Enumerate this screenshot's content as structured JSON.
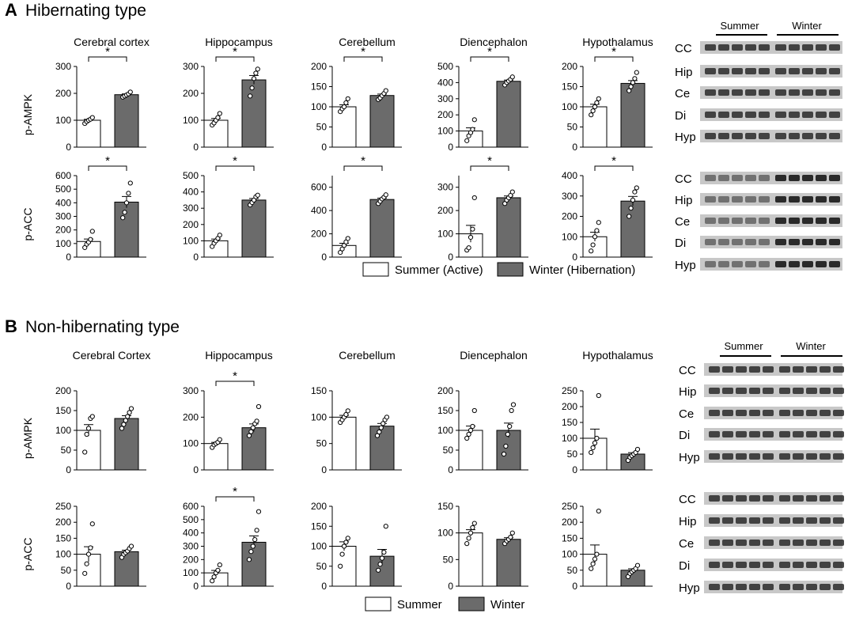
{
  "colors": {
    "summer_fill": "#ffffff",
    "winter_fill": "#6b6b6b",
    "blot_dark": "#2a2a2a",
    "blot_bg": "#c8c8c8"
  },
  "panels": [
    {
      "letter": "A",
      "title": "Hibernating type",
      "legend": [
        "Summer (Active)",
        "Winter (Hibernation)"
      ],
      "blot_group_labels": [
        "Summer",
        "Winter"
      ],
      "blot_ampk_lanes": [
        "CC",
        "Hip",
        "Ce",
        "Di",
        "Hyp"
      ],
      "blot_acc_lanes": [
        "CC",
        "Hip",
        "Ce",
        "Di",
        "Hyp"
      ],
      "regions": [
        "Cerebral cortex",
        "Hippocampus",
        "Cerebellum",
        "Diencephalon",
        "Hypothalamus"
      ],
      "row_labels": [
        "p-AMPK",
        "p-ACC"
      ]
    },
    {
      "letter": "B",
      "title": "Non-hibernating type",
      "legend": [
        "Summer",
        "Winter"
      ],
      "blot_group_labels": [
        "Summer",
        "Winter"
      ],
      "blot_ampk_lanes": [
        "CC",
        "Hip",
        "Ce",
        "Di",
        "Hyp"
      ],
      "blot_acc_lanes": [
        "CC",
        "Hip",
        "Ce",
        "Di",
        "Hyp"
      ],
      "regions": [
        "Cerebral Cortex",
        "Hippocampus",
        "Cerebellum",
        "Diencephalon",
        "Hypothalamus"
      ],
      "row_labels": [
        "p-AMPK",
        "p-ACC"
      ]
    }
  ],
  "chart_data": [
    {
      "panel": "A",
      "row": "p-AMPK",
      "region": "Cerebral cortex",
      "type": "bar",
      "categories": [
        "Summer",
        "Winter"
      ],
      "values": [
        100,
        195
      ],
      "ylim": [
        0,
        300
      ],
      "yticks": [
        0,
        100,
        200,
        300
      ],
      "sig": "*",
      "points": [
        [
          88,
          95,
          100,
          104,
          110
        ],
        [
          186,
          190,
          194,
          198,
          205
        ]
      ]
    },
    {
      "panel": "A",
      "row": "p-AMPK",
      "region": "Hippocampus",
      "type": "bar",
      "categories": [
        "Summer",
        "Winter"
      ],
      "values": [
        100,
        250
      ],
      "ylim": [
        0,
        300
      ],
      "yticks": [
        0,
        100,
        200,
        300
      ],
      "sig": "*",
      "points": [
        [
          82,
          90,
          100,
          110,
          125
        ],
        [
          190,
          220,
          255,
          275,
          290
        ]
      ]
    },
    {
      "panel": "A",
      "row": "p-AMPK",
      "region": "Cerebellum",
      "type": "bar",
      "categories": [
        "Summer",
        "Winter"
      ],
      "values": [
        100,
        128
      ],
      "ylim": [
        0,
        200
      ],
      "yticks": [
        0,
        50,
        100,
        150,
        200
      ],
      "sig": "*",
      "points": [
        [
          88,
          95,
          100,
          110,
          120
        ],
        [
          118,
          122,
          128,
          133,
          140
        ]
      ]
    },
    {
      "panel": "A",
      "row": "p-AMPK",
      "region": "Diencephalon",
      "type": "bar",
      "categories": [
        "Summer",
        "Winter"
      ],
      "values": [
        100,
        408
      ],
      "ylim": [
        0,
        500
      ],
      "yticks": [
        0,
        100,
        200,
        300,
        400,
        500
      ],
      "sig": "*",
      "points": [
        [
          40,
          70,
          90,
          110,
          170
        ],
        [
          385,
          400,
          410,
          420,
          435
        ]
      ]
    },
    {
      "panel": "A",
      "row": "p-AMPK",
      "region": "Hypothalamus",
      "type": "bar",
      "categories": [
        "Summer",
        "Winter"
      ],
      "values": [
        100,
        158
      ],
      "ylim": [
        0,
        200
      ],
      "yticks": [
        0,
        50,
        100,
        150,
        200
      ],
      "sig": "*",
      "points": [
        [
          80,
          90,
          100,
          110,
          120
        ],
        [
          140,
          150,
          160,
          170,
          185
        ]
      ]
    },
    {
      "panel": "A",
      "row": "p-ACC",
      "region": "Cerebral cortex",
      "type": "bar",
      "categories": [
        "Summer",
        "Winter"
      ],
      "values": [
        115,
        405
      ],
      "ylim": [
        0,
        600
      ],
      "yticks": [
        0,
        100,
        200,
        300,
        400,
        500,
        600
      ],
      "sig": "*",
      "points": [
        [
          70,
          95,
          110,
          130,
          190
        ],
        [
          290,
          330,
          400,
          470,
          545
        ]
      ]
    },
    {
      "panel": "A",
      "row": "p-ACC",
      "region": "Hippocampus",
      "type": "bar",
      "categories": [
        "Summer",
        "Winter"
      ],
      "values": [
        100,
        350
      ],
      "ylim": [
        0,
        500
      ],
      "yticks": [
        0,
        100,
        200,
        300,
        400,
        500
      ],
      "sig": "*",
      "points": [
        [
          65,
          85,
          100,
          115,
          135
        ],
        [
          320,
          335,
          350,
          370,
          380
        ]
      ]
    },
    {
      "panel": "A",
      "row": "p-ACC",
      "region": "Cerebellum",
      "type": "bar",
      "categories": [
        "Summer",
        "Winter"
      ],
      "values": [
        100,
        495
      ],
      "ylim": [
        0,
        700
      ],
      "yticks": [
        0,
        200,
        400,
        600
      ],
      "sig": "*",
      "points": [
        [
          40,
          70,
          100,
          130,
          160
        ],
        [
          460,
          480,
          500,
          515,
          535
        ]
      ]
    },
    {
      "panel": "A",
      "row": "p-ACC",
      "region": "Diencephalon",
      "type": "bar",
      "categories": [
        "Summer",
        "Winter"
      ],
      "values": [
        100,
        255
      ],
      "ylim": [
        0,
        350
      ],
      "yticks": [
        0,
        100,
        200,
        300
      ],
      "sig": "*",
      "points": [
        [
          30,
          40,
          85,
          120,
          255
        ],
        [
          230,
          245,
          255,
          265,
          280
        ]
      ]
    },
    {
      "panel": "A",
      "row": "p-ACC",
      "region": "Hypothalamus",
      "type": "bar",
      "categories": [
        "Summer",
        "Winter"
      ],
      "values": [
        100,
        275
      ],
      "ylim": [
        0,
        400
      ],
      "yticks": [
        0,
        100,
        200,
        300,
        400
      ],
      "sig": "*",
      "points": [
        [
          30,
          60,
          100,
          130,
          170
        ],
        [
          200,
          240,
          280,
          320,
          340
        ]
      ]
    },
    {
      "panel": "B",
      "row": "p-AMPK",
      "region": "Cerebral Cortex",
      "type": "bar",
      "categories": [
        "Summer",
        "Winter"
      ],
      "values": [
        100,
        130
      ],
      "ylim": [
        0,
        200
      ],
      "yticks": [
        0,
        50,
        100,
        150,
        200
      ],
      "sig": "",
      "points": [
        [
          45,
          90,
          105,
          130,
          135
        ],
        [
          105,
          115,
          125,
          135,
          145,
          155
        ]
      ]
    },
    {
      "panel": "B",
      "row": "p-AMPK",
      "region": "Hippocampus",
      "type": "bar",
      "categories": [
        "Summer",
        "Winter"
      ],
      "values": [
        100,
        160
      ],
      "ylim": [
        0,
        300
      ],
      "yticks": [
        0,
        100,
        200,
        300
      ],
      "sig": "*",
      "points": [
        [
          85,
          95,
          100,
          105,
          115
        ],
        [
          130,
          145,
          160,
          175,
          185,
          240
        ]
      ]
    },
    {
      "panel": "B",
      "row": "p-AMPK",
      "region": "Cerebellum",
      "type": "bar",
      "categories": [
        "Summer",
        "Winter"
      ],
      "values": [
        100,
        83
      ],
      "ylim": [
        0,
        150
      ],
      "yticks": [
        0,
        50,
        100,
        150
      ],
      "sig": "",
      "points": [
        [
          90,
          95,
          100,
          105,
          112
        ],
        [
          65,
          72,
          80,
          88,
          95,
          100
        ]
      ]
    },
    {
      "panel": "B",
      "row": "p-AMPK",
      "region": "Diencephalon",
      "type": "bar",
      "categories": [
        "Summer",
        "Winter"
      ],
      "values": [
        100,
        100
      ],
      "ylim": [
        0,
        200
      ],
      "yticks": [
        0,
        50,
        100,
        150,
        200
      ],
      "sig": "",
      "points": [
        [
          80,
          90,
          100,
          110,
          150
        ],
        [
          40,
          60,
          90,
          110,
          150,
          165
        ]
      ]
    },
    {
      "panel": "B",
      "row": "p-AMPK",
      "region": "Hypothalamus",
      "type": "bar",
      "categories": [
        "Summer",
        "Winter"
      ],
      "values": [
        100,
        50
      ],
      "ylim": [
        0,
        250
      ],
      "yticks": [
        0,
        50,
        100,
        150,
        200,
        250
      ],
      "sig": "",
      "points": [
        [
          55,
          70,
          85,
          100,
          235
        ],
        [
          30,
          40,
          45,
          50,
          55,
          65
        ]
      ]
    },
    {
      "panel": "B",
      "row": "p-ACC",
      "region": "Cerebral Cortex",
      "type": "bar",
      "categories": [
        "Summer",
        "Winter"
      ],
      "values": [
        100,
        108
      ],
      "ylim": [
        0,
        250
      ],
      "yticks": [
        0,
        50,
        100,
        150,
        200,
        250
      ],
      "sig": "",
      "points": [
        [
          40,
          70,
          100,
          120,
          195
        ],
        [
          90,
          100,
          105,
          110,
          118,
          125
        ]
      ]
    },
    {
      "panel": "B",
      "row": "p-ACC",
      "region": "Hippocampus",
      "type": "bar",
      "categories": [
        "Summer",
        "Winter"
      ],
      "values": [
        100,
        330
      ],
      "ylim": [
        0,
        600
      ],
      "yticks": [
        0,
        100,
        200,
        300,
        400,
        500,
        600
      ],
      "sig": "*",
      "points": [
        [
          40,
          70,
          100,
          120,
          160
        ],
        [
          200,
          260,
          300,
          350,
          420,
          560
        ]
      ]
    },
    {
      "panel": "B",
      "row": "p-ACC",
      "region": "Cerebellum",
      "type": "bar",
      "categories": [
        "Summer",
        "Winter"
      ],
      "values": [
        100,
        75
      ],
      "ylim": [
        0,
        200
      ],
      "yticks": [
        0,
        50,
        100,
        150,
        200
      ],
      "sig": "",
      "points": [
        [
          50,
          80,
          100,
          110,
          120
        ],
        [
          40,
          55,
          70,
          85,
          150
        ]
      ]
    },
    {
      "panel": "B",
      "row": "p-ACC",
      "region": "Diencephalon",
      "type": "bar",
      "categories": [
        "Summer",
        "Winter"
      ],
      "values": [
        100,
        88
      ],
      "ylim": [
        0,
        150
      ],
      "yticks": [
        0,
        50,
        100,
        150
      ],
      "sig": "",
      "points": [
        [
          80,
          90,
          100,
          110,
          118
        ],
        [
          80,
          85,
          88,
          92,
          100
        ]
      ]
    },
    {
      "panel": "B",
      "row": "p-ACC",
      "region": "Hypothalamus",
      "type": "bar",
      "categories": [
        "Summer",
        "Winter"
      ],
      "values": [
        100,
        50
      ],
      "ylim": [
        0,
        250
      ],
      "yticks": [
        0,
        50,
        100,
        150,
        200,
        250
      ],
      "sig": "",
      "points": [
        [
          55,
          70,
          85,
          100,
          235
        ],
        [
          30,
          40,
          45,
          50,
          55,
          65
        ]
      ]
    }
  ]
}
